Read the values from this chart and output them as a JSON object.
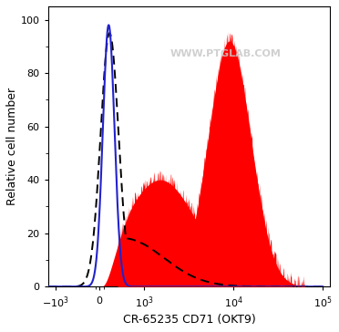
{
  "title": "",
  "xlabel": "CR-65235 CD71 (OKT9)",
  "ylabel": "Relative cell number",
  "ylim": [
    0,
    105
  ],
  "yticks": [
    0,
    20,
    40,
    60,
    80,
    100
  ],
  "watermark": "WWW.PTGLAB.COM",
  "watermark_color": "#c8c8c8",
  "background_color": "#ffffff",
  "red_fill_color": "#ff0000",
  "blue_line_color": "#2222cc",
  "dashed_line_color": "#000000",
  "linthresh": 1000,
  "linscale": 0.45
}
